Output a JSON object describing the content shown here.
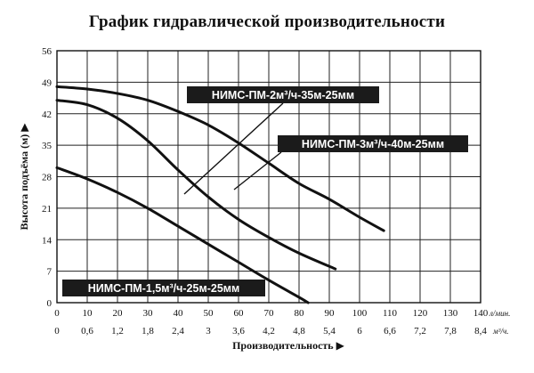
{
  "chart_data": {
    "type": "line",
    "title": "График гидравлической производительности",
    "xlabel": "Производительность ▶",
    "ylabel": "Высота подъёма (м) ▶",
    "x_unit_primary": "л/мин.",
    "x_unit_secondary": "м³/ч.",
    "xlim": [
      0,
      140
    ],
    "ylim": [
      0,
      56
    ],
    "x_ticks": [
      0,
      10,
      20,
      30,
      40,
      50,
      60,
      70,
      80,
      90,
      100,
      110,
      120,
      130,
      140
    ],
    "x_ticks_secondary": [
      "0",
      "0,6",
      "1,2",
      "1,8",
      "2,4",
      "3",
      "3,6",
      "4,2",
      "4,8",
      "5,4",
      "6",
      "6,6",
      "7,2",
      "7,8",
      "8,4"
    ],
    "y_ticks": [
      0,
      7,
      14,
      21,
      28,
      35,
      42,
      49,
      56
    ],
    "grid": true,
    "series": [
      {
        "name": "НИМС-ПМ-1,5м³/ч-25м-25мм",
        "x": [
          0,
          10,
          20,
          30,
          40,
          50,
          60,
          70,
          80,
          83
        ],
        "y": [
          30,
          27.5,
          24.5,
          21,
          17,
          13,
          9,
          5,
          1.2,
          0
        ]
      },
      {
        "name": "НИМС-ПМ-2м³/ч-35м-25мм",
        "x": [
          0,
          10,
          20,
          30,
          40,
          50,
          60,
          70,
          80,
          92
        ],
        "y": [
          45,
          44,
          41,
          36,
          29.5,
          23.5,
          18.5,
          14.5,
          11,
          7.5
        ]
      },
      {
        "name": "НИМС-ПМ-3м³/ч-40м-25мм",
        "x": [
          0,
          10,
          20,
          30,
          40,
          50,
          60,
          70,
          80,
          90,
          100,
          108
        ],
        "y": [
          48,
          47.5,
          46.5,
          45,
          42.5,
          39.5,
          35.5,
          31,
          26.5,
          23,
          19,
          16
        ]
      }
    ]
  }
}
